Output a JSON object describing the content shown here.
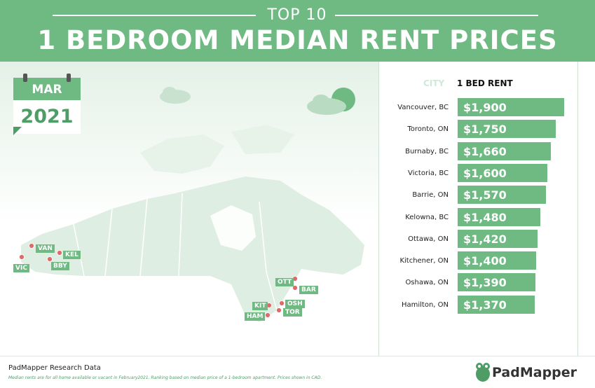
{
  "header": {
    "top_label": "TOP 10",
    "title": "1 BEDROOM MEDIAN RENT PRICES"
  },
  "calendar": {
    "month": "MAR",
    "year": "2021"
  },
  "colors": {
    "accent": "#6fb983",
    "accent_dark": "#4f9d66",
    "pin": "#e06a6a"
  },
  "chart_data": {
    "type": "bar",
    "columns": [
      "CITY",
      "1 BED RENT"
    ],
    "categories": [
      "Vancouver, BC",
      "Toronto, ON",
      "Burnaby, BC",
      "Victoria, BC",
      "Barrie, ON",
      "Kelowna, BC",
      "Ottawa, ON",
      "Kitchener, ON",
      "Oshawa, ON",
      "Hamilton, ON"
    ],
    "values": [
      1900,
      1750,
      1660,
      1600,
      1570,
      1480,
      1420,
      1400,
      1390,
      1370
    ],
    "value_labels": [
      "$1,900",
      "$1,750",
      "$1,660",
      "$1,600",
      "$1,570",
      "$1,480",
      "$1,420",
      "$1,400",
      "$1,390",
      "$1,370"
    ]
  },
  "map_labels": [
    "VAN",
    "KEL",
    "VIC",
    "BBY",
    "OTT",
    "BAR",
    "KIT",
    "OSH",
    "HAM",
    "TOR"
  ],
  "footer": {
    "title": "PadMapper Research Data",
    "note": "Median rents are for all home available or vacant in February2021. Ranking based on median price of a 1-bedroom apartment. Prices shown in CAD.",
    "brand": "PadMapper"
  }
}
